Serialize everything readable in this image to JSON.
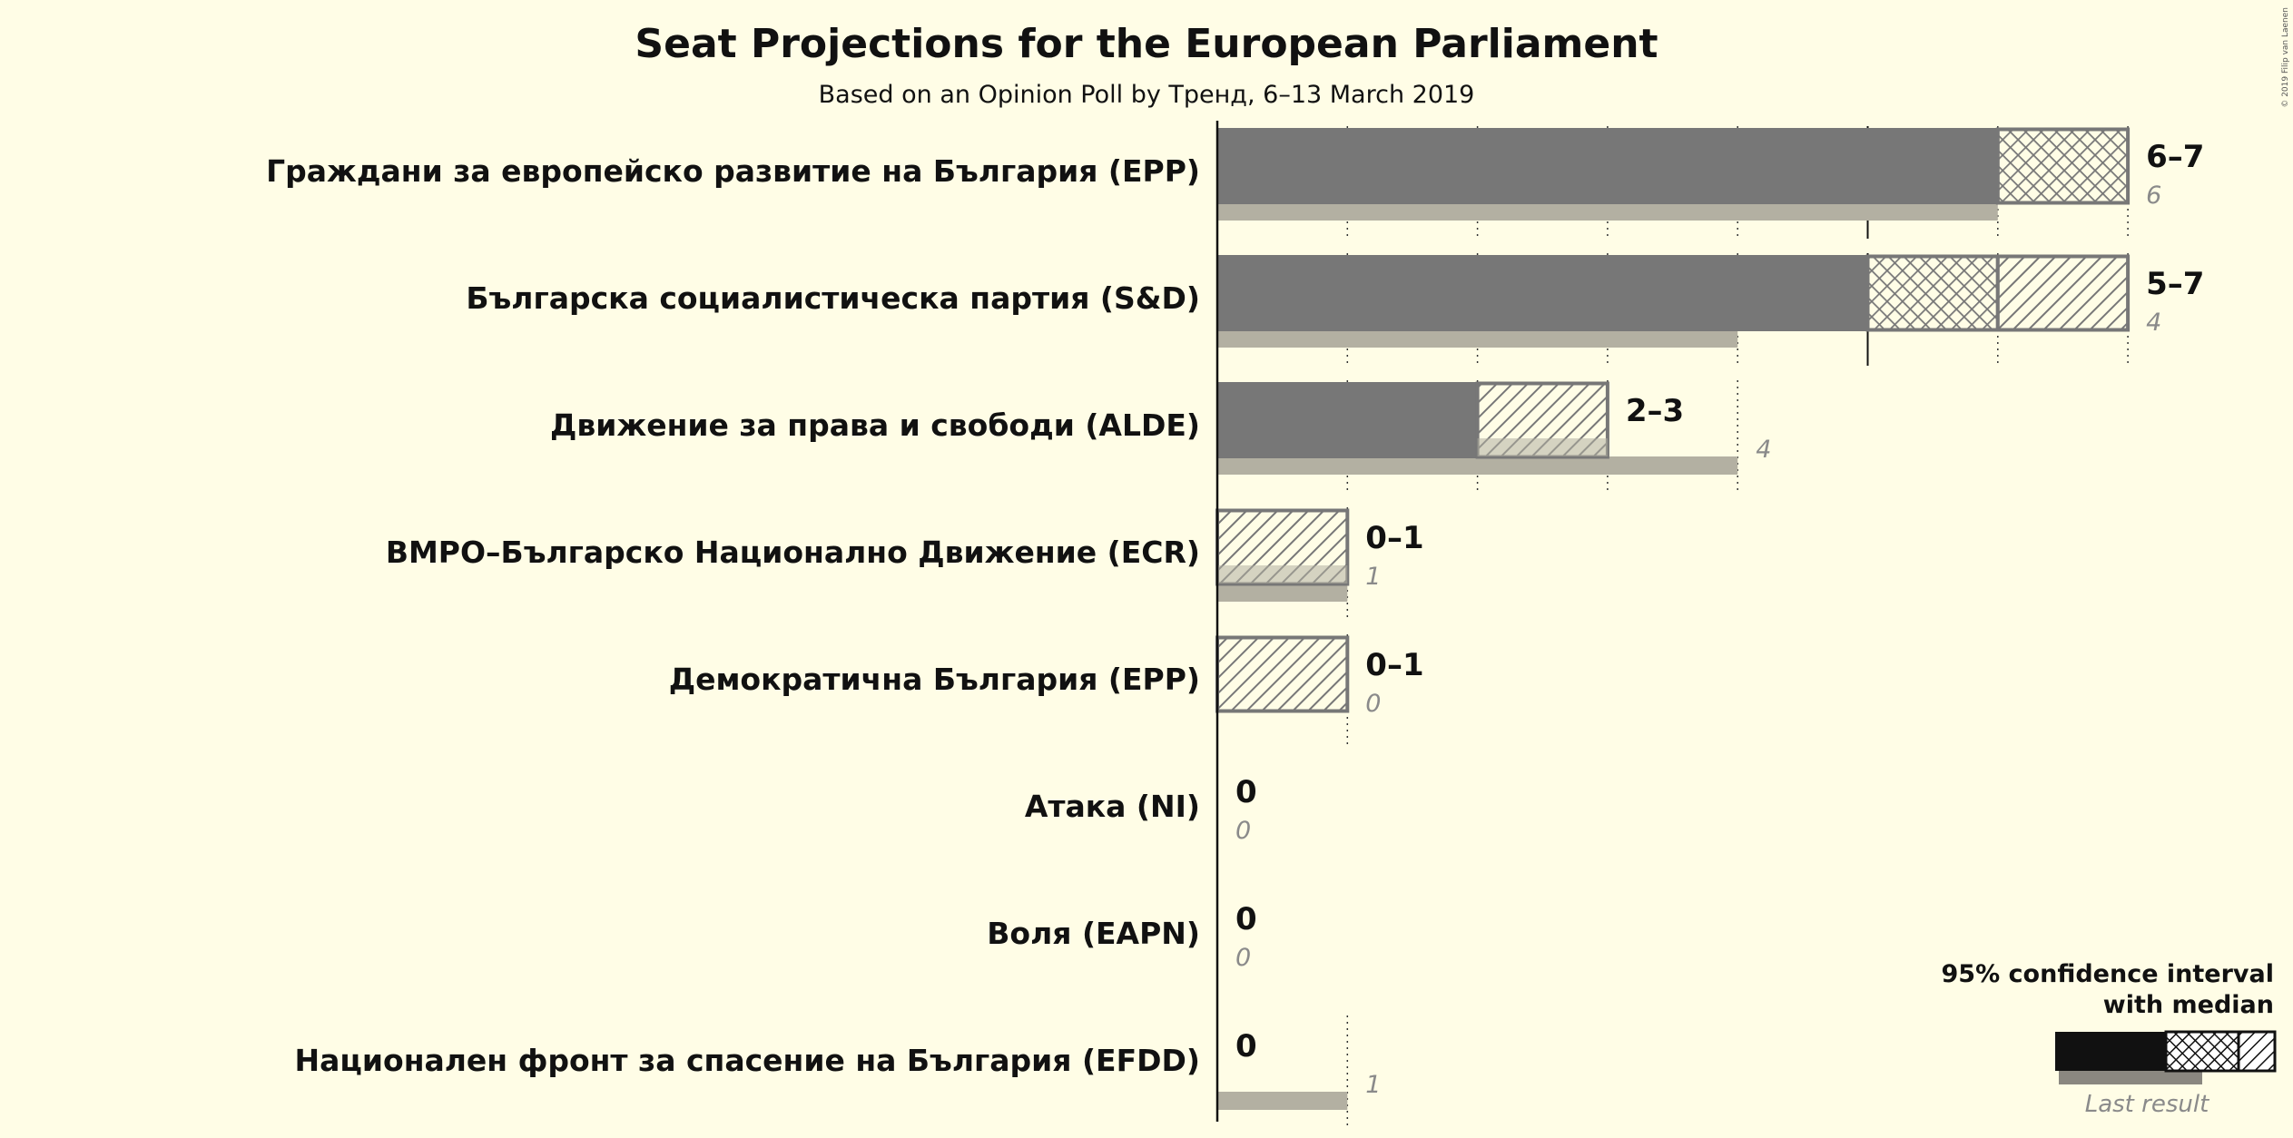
{
  "chart_data": {
    "type": "bar",
    "title": "Seat Projections for the European Parliament",
    "subtitle": "Based on an Opinion Poll by Тренд, 6–13 March 2019",
    "categories": [
      "Граждани за европейско развитие на България (EPP)",
      "Българска социалистическа партия (S&D)",
      "Движение за права и свободи (ALDE)",
      "ВМРО–Българско Национално Движение (ECR)",
      "Демократична България (EPP)",
      "Атака (NI)",
      "Воля (EAPN)",
      "Национален фронт за спасение на България (EFDD)"
    ],
    "series": [
      {
        "name": "95% confidence interval with median",
        "values": [
          {
            "low": 6,
            "median": 7,
            "high": 7,
            "label": "6–7"
          },
          {
            "low": 5,
            "median": 6,
            "high": 7,
            "label": "5–7"
          },
          {
            "low": 2,
            "median": 2,
            "high": 3,
            "label": "2–3"
          },
          {
            "low": 0,
            "median": 0,
            "high": 1,
            "label": "0–1"
          },
          {
            "low": 0,
            "median": 0,
            "high": 1,
            "label": "0–1"
          },
          {
            "low": 0,
            "median": 0,
            "high": 0,
            "label": "0"
          },
          {
            "low": 0,
            "median": 0,
            "high": 0,
            "label": "0"
          },
          {
            "low": 0,
            "median": 0,
            "high": 0,
            "label": "0"
          }
        ]
      },
      {
        "name": "Last result",
        "values": [
          6,
          4,
          4,
          1,
          0,
          0,
          0,
          1
        ]
      }
    ],
    "x_max": 7,
    "grid": true,
    "legend": {
      "title_line1": "95% confidence interval",
      "title_line2": "with median",
      "last_result": "Last result",
      "position": "bottom-right"
    },
    "copyright": "© 2019 Filip van Laenen"
  },
  "colors": {
    "background": "#fffde6",
    "bar": "#777777",
    "last_result": "#b3b0a2",
    "text": "#111111",
    "last_text": "#8a8a8a",
    "legend_solid": "#111111"
  }
}
